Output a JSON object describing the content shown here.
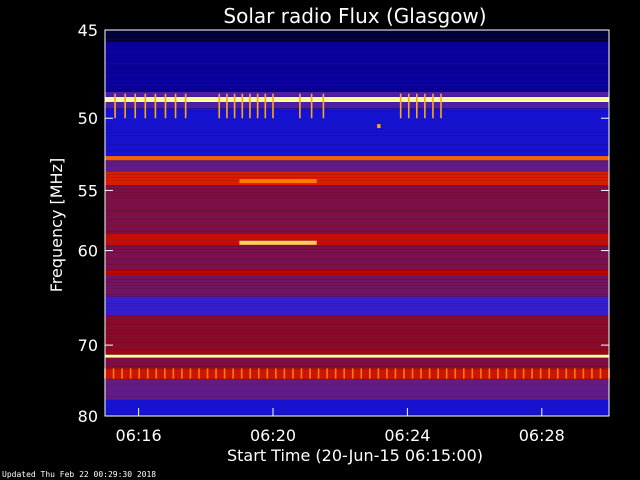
{
  "chart_data": {
    "type": "heatmap",
    "title": "Solar radio Flux (Glasgow)",
    "ylabel": "Frequency [MHz]",
    "xlabel": "Start Time (20-Jun-15 06:15:00)",
    "x_ticks": [
      "06:16",
      "06:20",
      "06:24",
      "06:28"
    ],
    "x_tick_minutes": [
      1,
      5,
      9,
      13
    ],
    "x_range_minutes": [
      0,
      15
    ],
    "y_ticks": [
      45,
      50,
      55,
      60,
      70,
      80
    ],
    "y_range": [
      45,
      80
    ],
    "y_scale": "reciprocal",
    "colormap": [
      "#000020",
      "#0a00a0",
      "#1e1ef0",
      "#5a1e9a",
      "#8a0a28",
      "#b40000",
      "#f03000",
      "#ff9000",
      "#ffffa0"
    ],
    "bands": [
      {
        "from": 45.0,
        "to": 45.6,
        "level": 0.02
      },
      {
        "from": 45.6,
        "to": 48.4,
        "level": 0.12
      },
      {
        "from": 48.4,
        "to": 48.7,
        "level": 0.35
      },
      {
        "from": 48.7,
        "to": 49.0,
        "level": 1.0
      },
      {
        "from": 49.0,
        "to": 49.4,
        "level": 0.35
      },
      {
        "from": 49.4,
        "to": 52.5,
        "level": 0.2
      },
      {
        "from": 52.5,
        "to": 52.8,
        "level": 0.82
      },
      {
        "from": 52.8,
        "to": 53.6,
        "level": 0.4
      },
      {
        "from": 53.6,
        "to": 54.6,
        "level": 0.7
      },
      {
        "from": 54.6,
        "to": 58.5,
        "level": 0.47
      },
      {
        "from": 58.5,
        "to": 59.5,
        "level": 0.66
      },
      {
        "from": 59.5,
        "to": 61.8,
        "level": 0.46
      },
      {
        "from": 61.8,
        "to": 62.3,
        "level": 0.64
      },
      {
        "from": 62.3,
        "to": 64.5,
        "level": 0.44
      },
      {
        "from": 64.5,
        "to": 66.5,
        "level": 0.3
      },
      {
        "from": 66.5,
        "to": 70.5,
        "level": 0.5
      },
      {
        "from": 70.5,
        "to": 71.2,
        "level": 0.55
      },
      {
        "from": 71.2,
        "to": 71.6,
        "level": 1.0
      },
      {
        "from": 71.6,
        "to": 73.0,
        "level": 0.48
      },
      {
        "from": 73.0,
        "to": 74.5,
        "level": 0.68
      },
      {
        "from": 74.5,
        "to": 77.5,
        "level": 0.4
      },
      {
        "from": 77.5,
        "to": 80.0,
        "level": 0.2
      }
    ],
    "bursts": [
      {
        "freq": 54.3,
        "start_min": 4.0,
        "end_min": 6.3,
        "level": 0.85
      },
      {
        "freq": 59.3,
        "start_min": 4.0,
        "end_min": 6.3,
        "level": 0.95
      },
      {
        "freq": 50.5,
        "start_min": 8.1,
        "end_min": 8.2,
        "level": 0.9
      }
    ],
    "spike_groups": [
      {
        "freq_from": 48.5,
        "freq_to": 50.0,
        "start_min": 0.3,
        "end_min": 2.4,
        "count": 8,
        "level": 0.9
      },
      {
        "freq_from": 48.5,
        "freq_to": 50.0,
        "start_min": 3.4,
        "end_min": 5.0,
        "count": 8,
        "level": 0.9
      },
      {
        "freq_from": 48.5,
        "freq_to": 50.0,
        "start_min": 5.8,
        "end_min": 6.5,
        "count": 3,
        "level": 0.9
      },
      {
        "freq_from": 48.5,
        "freq_to": 50.0,
        "start_min": 8.8,
        "end_min": 10.0,
        "count": 6,
        "level": 0.9
      },
      {
        "freq_from": 73.0,
        "freq_to": 74.4,
        "start_min": 0.0,
        "end_min": 15.0,
        "count": 60,
        "level": 0.85
      }
    ]
  },
  "footer": "Updated Thu Feb 22 00:29:30 2018"
}
